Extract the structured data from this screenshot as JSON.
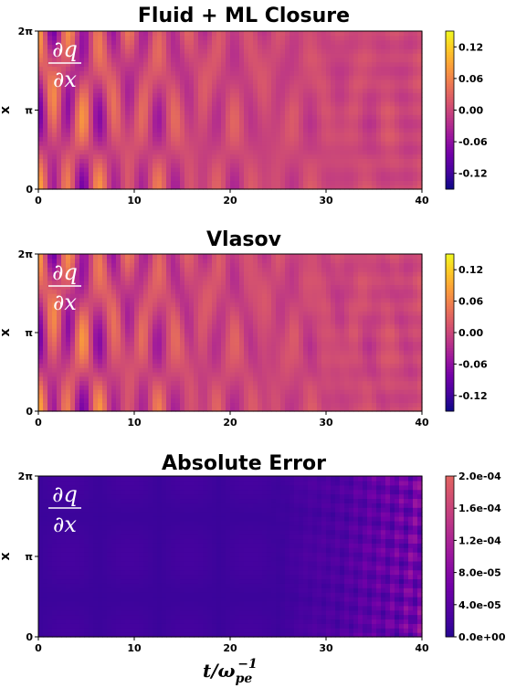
{
  "chart_data": [
    {
      "type": "heatmap",
      "title": "Fluid + ML Closure",
      "ylabel": "x",
      "xlabel": "",
      "xlim": [
        0,
        40
      ],
      "xticks": [
        "0",
        "10",
        "20",
        "30",
        "40"
      ],
      "yticks": [
        "0",
        "π",
        "2π"
      ],
      "colormap": "plasma",
      "colorbar_ticks": [
        "0.12",
        "0.06",
        "0.00",
        "-0.06",
        "-0.12"
      ],
      "colorbar_range": [
        -0.15,
        0.15
      ],
      "annotation": {
        "num": "∂q",
        "den": "∂x"
      }
    },
    {
      "type": "heatmap",
      "title": "Vlasov",
      "ylabel": "x",
      "xlabel": "",
      "xlim": [
        0,
        40
      ],
      "xticks": [
        "0",
        "10",
        "20",
        "30",
        "40"
      ],
      "yticks": [
        "0",
        "π",
        "2π"
      ],
      "colormap": "plasma",
      "colorbar_ticks": [
        "0.12",
        "0.06",
        "0.00",
        "-0.06",
        "-0.12"
      ],
      "colorbar_range": [
        -0.15,
        0.15
      ],
      "annotation": {
        "num": "∂q",
        "den": "∂x"
      }
    },
    {
      "type": "heatmap",
      "title": "Absolute Error",
      "ylabel": "x",
      "xlabel": "t/ω",
      "xlabel_sub": "pe",
      "xlabel_sup": "−1",
      "xlim": [
        0,
        40
      ],
      "xticks": [
        "0",
        "10",
        "20",
        "30",
        "40"
      ],
      "yticks": [
        "0",
        "π",
        "2π"
      ],
      "colormap": "plasma-low",
      "colorbar_ticks": [
        "2.0e-04",
        "1.6e-04",
        "1.2e-04",
        "8.0e-05",
        "4.0e-05",
        "0.0e+00"
      ],
      "colorbar_range": [
        0,
        0.0002
      ],
      "annotation": {
        "num": "∂q",
        "den": "∂x"
      }
    }
  ],
  "colors": {
    "plasma": [
      "#0d0887",
      "#46039f",
      "#7201a8",
      "#9c179e",
      "#bd3786",
      "#d8576b",
      "#ed7953",
      "#fb9f3a",
      "#fdca26",
      "#f0f921"
    ]
  }
}
